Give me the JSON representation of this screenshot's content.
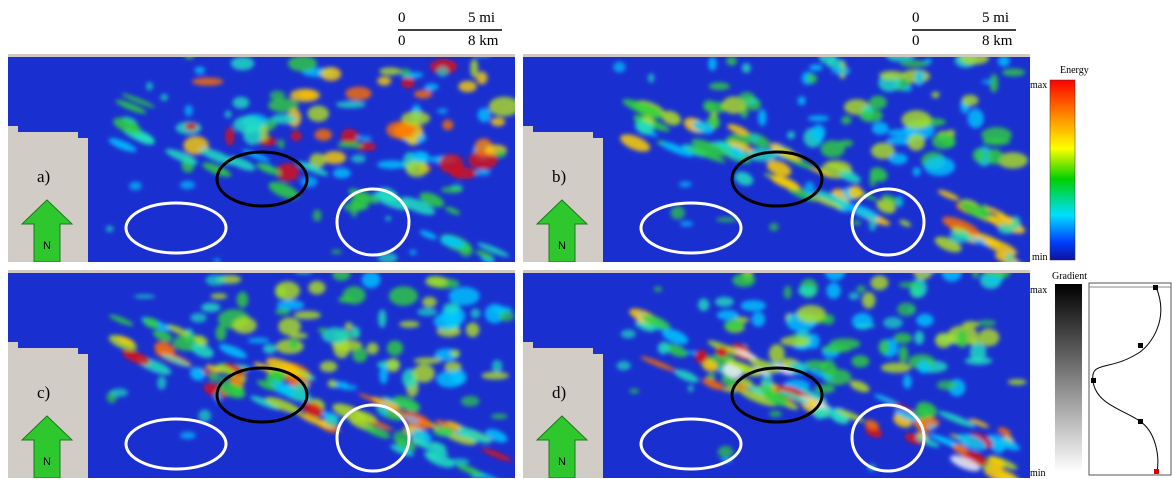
{
  "panels": [
    {
      "label": "a)"
    },
    {
      "label": "b)"
    },
    {
      "label": "c)"
    },
    {
      "label": "d)"
    }
  ],
  "north_label": "N",
  "scale_bar": {
    "mi_start": "0",
    "mi_end": "5 mi",
    "km_start": "0",
    "km_end": "8 km"
  },
  "energy_legend": {
    "title": "Energy",
    "max": "max",
    "min": "min"
  },
  "gradient_legend": {
    "title": "Gradient",
    "max": "max",
    "min": "min"
  }
}
